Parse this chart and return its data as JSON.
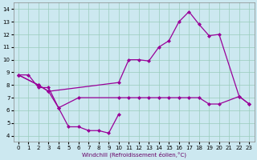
{
  "xlabel": "Windchill (Refroidissement éolien,°C)",
  "background_color": "#cce8f0",
  "grid_color": "#99ccbb",
  "line_color": "#990099",
  "xlim": [
    -0.5,
    23.5
  ],
  "ylim": [
    3.5,
    14.5
  ],
  "xticks": [
    0,
    1,
    2,
    3,
    4,
    5,
    6,
    7,
    8,
    9,
    10,
    11,
    12,
    13,
    14,
    15,
    16,
    17,
    18,
    19,
    20,
    21,
    22,
    23
  ],
  "yticks": [
    4,
    5,
    6,
    7,
    8,
    9,
    10,
    11,
    12,
    13,
    14
  ],
  "series": [
    {
      "x": [
        0,
        1,
        2,
        3,
        4,
        5,
        6,
        7,
        8,
        9,
        10
      ],
      "y": [
        8.8,
        8.8,
        7.8,
        7.8,
        6.2,
        4.7,
        4.7,
        4.4,
        4.4,
        4.2,
        5.7
      ]
    },
    {
      "x": [
        0,
        2,
        3,
        4,
        6,
        10,
        11,
        12,
        13,
        14,
        15,
        16,
        17,
        18,
        19,
        20,
        22,
        23
      ],
      "y": [
        8.8,
        8.0,
        7.5,
        6.2,
        7.0,
        7.0,
        7.0,
        7.0,
        7.0,
        7.0,
        7.0,
        7.0,
        7.0,
        7.0,
        6.5,
        6.5,
        7.1,
        6.5
      ]
    },
    {
      "x": [
        0,
        2,
        3,
        10,
        11,
        12,
        13,
        14,
        15,
        16,
        17,
        18,
        19,
        20,
        22,
        23
      ],
      "y": [
        8.8,
        8.0,
        7.5,
        8.2,
        10.0,
        10.0,
        9.9,
        11.0,
        11.5,
        13.0,
        13.8,
        12.8,
        11.9,
        12.0,
        7.1,
        6.5
      ]
    }
  ],
  "marker": "D",
  "markersize": 2.0,
  "linewidth": 0.9
}
